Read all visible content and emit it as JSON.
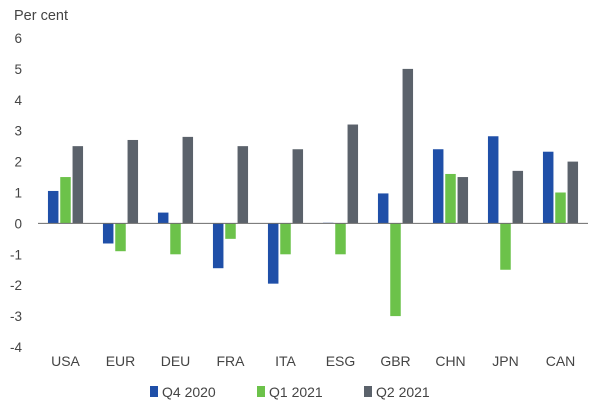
{
  "chart_data": {
    "type": "bar",
    "unit_label": "Per cent",
    "categories": [
      "USA",
      "EUR",
      "DEU",
      "FRA",
      "ITA",
      "ESG",
      "GBR",
      "CHN",
      "JPN",
      "CAN"
    ],
    "series": [
      {
        "name": "Q4 2020",
        "color": "#1f4fa8",
        "values": [
          1.05,
          -0.65,
          0.35,
          -1.45,
          -1.95,
          0.02,
          0.97,
          2.4,
          2.82,
          2.32
        ]
      },
      {
        "name": "Q1 2021",
        "color": "#6cc24a",
        "values": [
          1.5,
          -0.9,
          -1.0,
          -0.5,
          -1.0,
          -1.0,
          -3.0,
          1.6,
          -1.5,
          1.0
        ]
      },
      {
        "name": "Q2 2021",
        "color": "#5b626b",
        "values": [
          2.5,
          2.7,
          2.8,
          2.5,
          2.4,
          3.2,
          5.0,
          1.5,
          1.7,
          2.0
        ]
      }
    ],
    "ylim": [
      -4,
      6
    ],
    "yticks": [
      6,
      5,
      4,
      3,
      2,
      1,
      0,
      -1,
      -2,
      -3,
      -4
    ],
    "grid": false,
    "legend_position": "bottom"
  }
}
